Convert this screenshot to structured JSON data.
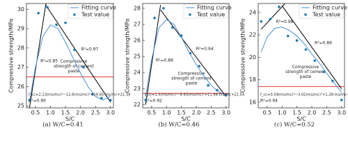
{
  "chart_data": [
    {
      "type": "line",
      "caption": "(a) W/C=0.41",
      "xlabel": "S/C",
      "ylabel": "Compressive strength/MPa",
      "xlim": [
        0.2,
        3.1
      ],
      "ylim": [
        24.9,
        30.3
      ],
      "xticks": [
        0.5,
        {
          "value": 1,
          "label": "1.0"
        },
        1.5,
        {
          "value": 2,
          "label": "2.0"
        },
        2.5,
        {
          "value": 3,
          "label": "3.0"
        }
      ],
      "yticks": [
        25,
        26,
        27,
        28,
        29,
        30
      ],
      "series": [
        {
          "name": "Fitting curve",
          "color": "#4a90d9",
          "label": "R²=0.90",
          "x": [
            0.3,
            0.5,
            0.75,
            1,
            1.25,
            1.5,
            1.75,
            2,
            2.25,
            2.5,
            2.75,
            3
          ],
          "values": [
            25.2,
            27.0,
            28.6,
            29.2,
            29.0,
            28.3,
            27.5,
            26.7,
            26.0,
            25.5,
            25.3,
            25.5
          ]
        },
        {
          "name": "Test value",
          "color": "#1f77b4",
          "x": [
            0.3,
            0.6,
            0.9,
            1.2,
            1.5,
            1.8,
            2.1,
            2.4,
            2.7,
            3
          ],
          "values": [
            25.3,
            29.8,
            30.1,
            29.2,
            29.3,
            27.9,
            27.0,
            25.6,
            25.4,
            25.3
          ]
        }
      ],
      "fit_lines": [
        {
          "label": "R²=0.85",
          "color": "#000000",
          "x": [
            0.3,
            0.85
          ],
          "values": [
            24.9,
            30.3
          ]
        },
        {
          "label": "R²=0.97",
          "color": "#000000",
          "x": [
            0.85,
            3
          ],
          "values": [
            30.2,
            25.2
          ]
        }
      ],
      "reference": {
        "value": 26.5,
        "color": "#e02020",
        "label": [
          "Compressive",
          "strength of cement",
          "paste"
        ]
      },
      "formula": "f_cc=2.23(ms/mc)³−12.8(ms/mc)²+19.65·ms/mc+21.39"
    },
    {
      "type": "line",
      "caption": "(b) W/C=0.46",
      "xlabel": "S/C",
      "ylabel": "Compressive strength/MPa",
      "xlim": [
        0.2,
        3.1
      ],
      "ylim": [
        21.8,
        28.3
      ],
      "xticks": [
        0.5,
        {
          "value": 1,
          "label": "1.0"
        },
        1.5,
        {
          "value": 2,
          "label": "2.0"
        },
        2.5,
        {
          "value": 3,
          "label": "3.0"
        }
      ],
      "yticks": [
        22,
        23,
        24,
        25,
        26,
        27,
        28
      ],
      "series": [
        {
          "name": "Fitting curve",
          "color": "#4a90d9",
          "label": "R²=0.92",
          "x": [
            0.3,
            0.5,
            0.75,
            1,
            1.25,
            1.5,
            1.75,
            2,
            2.25,
            2.5,
            2.75,
            3
          ],
          "values": [
            22.5,
            24.8,
            26.8,
            27.3,
            27.0,
            26.2,
            25.3,
            24.5,
            23.8,
            23.2,
            22.8,
            22.6
          ]
        },
        {
          "name": "Test value",
          "color": "#1f77b4",
          "x": [
            0.3,
            0.6,
            0.9,
            1.2,
            1.5,
            1.8,
            2.1,
            2.4,
            2.7,
            3
          ],
          "values": [
            22.3,
            27.4,
            28.0,
            26.8,
            26.3,
            25.2,
            24.4,
            23.2,
            22.9,
            22.6
          ]
        }
      ],
      "fit_lines": [
        {
          "label": "R²=0.86",
          "color": "#000000",
          "x": [
            0.3,
            0.8
          ],
          "values": [
            22.0,
            28.2
          ]
        },
        {
          "label": "R²=0.94",
          "color": "#000000",
          "x": [
            0.8,
            3
          ],
          "values": [
            27.9,
            22.5
          ]
        }
      ],
      "reference": {
        "value": 22.7,
        "color": "#e02020",
        "label": [
          "Compressive",
          "strength of cement",
          "paste"
        ]
      },
      "formula": "f_cc=1.5(ms/mc)³−8.65(ms/mc)²+11.98·ms/mc+22.54"
    },
    {
      "type": "line",
      "caption": "(c) W/C=0.52",
      "xlabel": "S/C",
      "ylabel": "Compressive strength/MPa",
      "xlim": [
        0.2,
        3.1
      ],
      "ylim": [
        15.5,
        24.8
      ],
      "xticks": [
        0.5,
        {
          "value": 1,
          "label": "1.0"
        },
        1.5,
        {
          "value": 2,
          "label": "2.0"
        },
        2.5,
        {
          "value": 3,
          "label": "3.0"
        }
      ],
      "yticks": [
        16,
        18,
        20,
        22,
        24
      ],
      "series": [
        {
          "name": "Fitting curve",
          "color": "#4a90d9",
          "label": "R²=0.94",
          "x": [
            0.3,
            0.5,
            0.75,
            1,
            1.25,
            1.5,
            1.75,
            2,
            2.25,
            2.5,
            2.75,
            3
          ],
          "values": [
            20.5,
            21.8,
            22.6,
            22.7,
            22.4,
            21.9,
            21.2,
            20.3,
            19.5,
            18.6,
            17.7,
            16.9
          ]
        },
        {
          "name": "Test value",
          "color": "#1f77b4",
          "x": [
            0.3,
            0.6,
            0.9,
            1.2,
            1.5,
            1.8,
            2.1,
            2.4,
            2.7,
            3
          ],
          "values": [
            23.2,
            23.4,
            24.5,
            21.9,
            21.5,
            20.7,
            19.7,
            18.7,
            17.9,
            16.2
          ]
        }
      ],
      "fit_lines": [
        {
          "label": "R²=0.98",
          "color": "#000000",
          "x": [
            0.3,
            1.1
          ],
          "values": [
            22.5,
            24.8
          ]
        },
        {
          "label": "R²=0.86",
          "color": "#000000",
          "x": [
            1,
            3
          ],
          "values": [
            24.6,
            17.2
          ]
        }
      ],
      "reference": {
        "value": 17.4,
        "color": "#e02020",
        "label": [
          "Compressive",
          "strength of cement",
          "paste"
        ]
      },
      "formula": "f_cc=0.59(ms/mc)³−3.02(ms/mc)²+1.28·ms/mc+23.58"
    }
  ]
}
